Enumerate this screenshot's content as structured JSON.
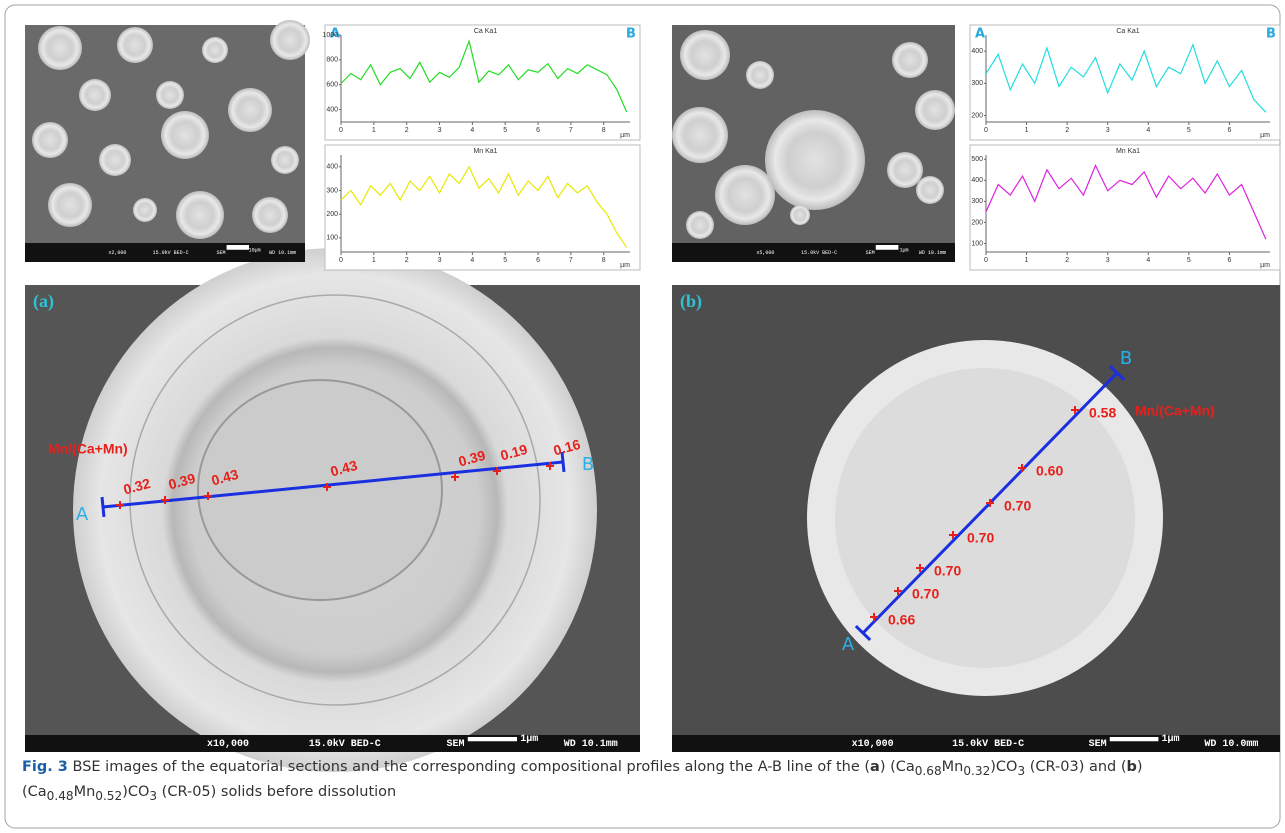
{
  "chart_data": [
    {
      "type": "line",
      "title": "Ca Ka1",
      "endpoints": [
        "A",
        "B"
      ],
      "x_label": "µm",
      "color": "#22dd22",
      "x": [
        0,
        0.3,
        0.6,
        0.9,
        1.2,
        1.5,
        1.8,
        2.1,
        2.4,
        2.7,
        3.0,
        3.3,
        3.6,
        3.9,
        4.2,
        4.5,
        4.8,
        5.1,
        5.4,
        5.7,
        6.0,
        6.3,
        6.6,
        6.9,
        7.2,
        7.5,
        7.8,
        8.1,
        8.4,
        8.7
      ],
      "values": [
        610,
        690,
        640,
        760,
        600,
        700,
        730,
        650,
        780,
        620,
        700,
        660,
        740,
        950,
        620,
        710,
        680,
        760,
        640,
        720,
        700,
        770,
        650,
        730,
        690,
        760,
        720,
        680,
        560,
        380
      ],
      "xlim": [
        0,
        8.8
      ],
      "xticks": [
        0,
        1,
        2,
        3,
        4,
        5,
        6,
        7,
        8
      ],
      "ylim": [
        300,
        1000
      ],
      "yticks": [
        400,
        600,
        800,
        1000
      ]
    },
    {
      "type": "line",
      "title": "Mn Ka1",
      "x_label": "µm",
      "color": "#e8e800",
      "x": [
        0,
        0.3,
        0.6,
        0.9,
        1.2,
        1.5,
        1.8,
        2.1,
        2.4,
        2.7,
        3.0,
        3.3,
        3.6,
        3.9,
        4.2,
        4.5,
        4.8,
        5.1,
        5.4,
        5.7,
        6.0,
        6.3,
        6.6,
        6.9,
        7.2,
        7.5,
        7.8,
        8.1,
        8.4,
        8.7
      ],
      "values": [
        260,
        300,
        240,
        320,
        280,
        330,
        260,
        340,
        300,
        360,
        290,
        370,
        330,
        400,
        310,
        350,
        290,
        370,
        280,
        340,
        300,
        360,
        270,
        330,
        290,
        320,
        250,
        200,
        120,
        60
      ],
      "xlim": [
        0,
        8.8
      ],
      "xticks": [
        0,
        1,
        2,
        3,
        4,
        5,
        6,
        7,
        8
      ],
      "ylim": [
        40,
        450
      ],
      "yticks": [
        100,
        200,
        300,
        400
      ]
    },
    {
      "type": "line",
      "title": "Ca Ka1",
      "endpoints": [
        "A",
        "B"
      ],
      "x_label": "µm",
      "color": "#22dddd",
      "x": [
        0,
        0.3,
        0.6,
        0.9,
        1.2,
        1.5,
        1.8,
        2.1,
        2.4,
        2.7,
        3.0,
        3.3,
        3.6,
        3.9,
        4.2,
        4.5,
        4.8,
        5.1,
        5.4,
        5.7,
        6.0,
        6.3,
        6.6,
        6.9
      ],
      "values": [
        330,
        390,
        280,
        360,
        300,
        410,
        290,
        350,
        320,
        380,
        270,
        360,
        310,
        400,
        290,
        350,
        330,
        420,
        300,
        370,
        290,
        340,
        250,
        210
      ],
      "xlim": [
        0,
        7
      ],
      "xticks": [
        0,
        1,
        2,
        3,
        4,
        5,
        6
      ],
      "ylim": [
        180,
        450
      ],
      "yticks": [
        200,
        300,
        400
      ]
    },
    {
      "type": "line",
      "title": "Mn Ka1",
      "x_label": "µm",
      "color": "#dd22dd",
      "x": [
        0,
        0.3,
        0.6,
        0.9,
        1.2,
        1.5,
        1.8,
        2.1,
        2.4,
        2.7,
        3.0,
        3.3,
        3.6,
        3.9,
        4.2,
        4.5,
        4.8,
        5.1,
        5.4,
        5.7,
        6.0,
        6.3,
        6.6,
        6.9
      ],
      "values": [
        250,
        380,
        330,
        420,
        300,
        450,
        360,
        410,
        330,
        470,
        350,
        400,
        380,
        440,
        320,
        420,
        360,
        410,
        340,
        430,
        330,
        380,
        250,
        120
      ],
      "xlim": [
        0,
        7
      ],
      "xticks": [
        0,
        1,
        2,
        3,
        4,
        5,
        6
      ],
      "ylim": [
        60,
        520
      ],
      "yticks": [
        100,
        200,
        300,
        400,
        500
      ]
    }
  ],
  "figure": {
    "top_images": [
      {
        "footer": [
          "x2,000",
          "15.0kV BED-C",
          "SEM",
          "10µm",
          "WD 10.1mm"
        ]
      },
      {
        "footer": [
          "x5,000",
          "15.0kV BED-C",
          "SEM",
          "1µm",
          "WD 10.1mm"
        ]
      }
    ],
    "panels": [
      {
        "label": "(a)",
        "ratio_label": "Mn/(Ca+Mn)",
        "endpoints": [
          "A",
          "B"
        ],
        "points": [
          "0.32",
          "0.39",
          "0.43",
          "0.43",
          "0.39",
          "0.19",
          "0.16"
        ],
        "footer": [
          "x10,000",
          "15.0kV BED-C",
          "SEM",
          "1µm",
          "WD 10.1mm"
        ]
      },
      {
        "label": "(b)",
        "ratio_label": "Mn/(Ca+Mn)",
        "endpoints": [
          "A",
          "B"
        ],
        "points": [
          "0.66",
          "0.70",
          "0.70",
          "0.70",
          "0.70",
          "0.60",
          "0.58"
        ],
        "footer": [
          "x10,000",
          "15.0kV BED-C",
          "SEM",
          "1µm",
          "WD 10.0mm"
        ]
      }
    ]
  },
  "caption": {
    "parts": [
      "Fig. 3",
      " BSE images of the equatorial sections and the corresponding compositional profiles along the A-B line of the (",
      "a",
      ") (Ca",
      "0.68",
      "Mn",
      "0.32",
      ")CO",
      "3",
      " (CR-03) and (",
      "b",
      ") (Ca",
      "0.48",
      "Mn",
      "0.52",
      ")CO",
      "3",
      " (CR-05) solids before dissolution"
    ]
  }
}
